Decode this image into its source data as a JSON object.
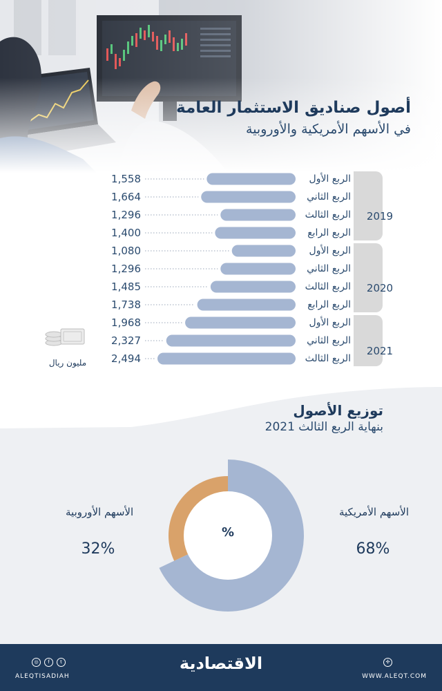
{
  "header": {
    "title": "أصول صناديق الاستثمار العامة",
    "subtitle": "في الأسهم الأمريكية والأوروبية"
  },
  "colors": {
    "bar": "#a5b6d2",
    "navy": "#1e3a5c",
    "year_box": "#d9d9d9",
    "donut_us": "#a5b6d2",
    "donut_eu": "#d9a26a",
    "panel": "#eef0f3"
  },
  "bar_unit": "مليون ريال",
  "chart_data": [
    {
      "type": "bar",
      "orientation": "horizontal",
      "title": "أصول صناديق الاستثمار العامة",
      "subtitle": "في الأسهم الأمريكية والأوروبية",
      "unit": "مليون ريال",
      "groups": [
        {
          "year": "2019",
          "count": 4
        },
        {
          "year": "2020",
          "count": 4
        },
        {
          "year": "2021",
          "count": 3
        }
      ],
      "categories": [
        "الربع الأول",
        "الربع الثاني",
        "الربع الثالث",
        "الربع الرابع",
        "الربع الأول",
        "الربع الثاني",
        "الربع الثالث",
        "الربع الرابع",
        "الربع الأول",
        "الربع الثاني",
        "الربع الثالث"
      ],
      "values": [
        1558,
        1664,
        1296,
        1400,
        1080,
        1296,
        1485,
        1738,
        1968,
        2327,
        2494
      ],
      "value_labels": [
        "1,558",
        "1,664",
        "1,296",
        "1,400",
        "1,080",
        "1,296",
        "1,485",
        "1,738",
        "1,968",
        "2,327",
        "2,494"
      ],
      "xlim": [
        0,
        2494
      ]
    },
    {
      "type": "pie",
      "style": "donut",
      "title": "توزيع الأصول",
      "subtitle": "بنهاية الربع الثالث 2021",
      "center_label": "%",
      "slices": [
        {
          "label": "الأسهم الأمريكية",
          "value": 68,
          "display": "68%"
        },
        {
          "label": "الأسهم الأوروبية",
          "value": 32,
          "display": "32%"
        }
      ]
    }
  ],
  "footer": {
    "brand": "الاقتصادية",
    "handle": "ALEQTISADIAH",
    "website": "WWW.ALEQT.COM"
  }
}
